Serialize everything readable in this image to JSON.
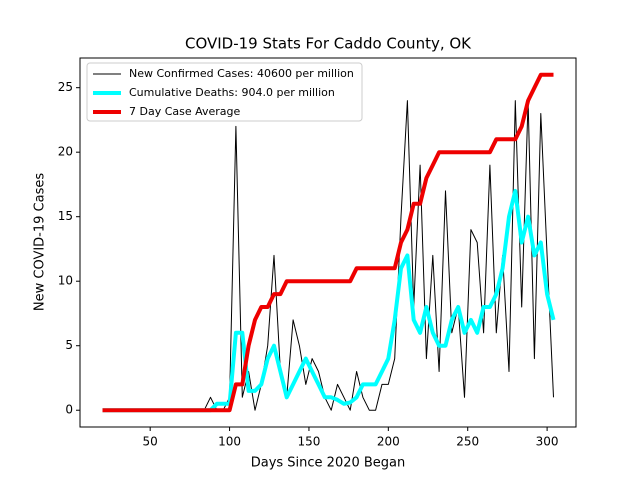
{
  "chart_data": {
    "type": "line",
    "title": "COVID-19 Stats For Caddo County, OK",
    "x_label": "Days Since 2020 Began",
    "y_label": "New COVID-19 Cases",
    "x": [
      20,
      24,
      28,
      32,
      36,
      40,
      44,
      48,
      52,
      56,
      60,
      64,
      68,
      72,
      76,
      80,
      84,
      88,
      92,
      96,
      100,
      104,
      108,
      112,
      116,
      120,
      124,
      128,
      132,
      136,
      140,
      144,
      148,
      152,
      156,
      160,
      164,
      168,
      172,
      176,
      180,
      184,
      188,
      192,
      196,
      200,
      204,
      208,
      212,
      216,
      220,
      224,
      228,
      232,
      236,
      240,
      244,
      248,
      252,
      256,
      260,
      264,
      268,
      272,
      276,
      280,
      284,
      288,
      292,
      296,
      300,
      304
    ],
    "series": [
      {
        "name": "New Confirmed Cases: 40600 per million",
        "color": "#000000",
        "width": 1,
        "values": [
          0,
          0,
          0,
          0,
          0,
          0,
          0,
          0,
          0,
          0,
          0,
          0,
          0,
          0,
          0,
          0,
          0,
          1,
          0,
          0,
          1,
          22,
          1,
          3,
          0,
          2,
          5,
          12,
          3,
          1,
          7,
          5,
          2,
          4,
          3,
          1,
          0,
          2,
          1,
          0,
          3,
          1,
          0,
          0,
          2,
          2,
          4,
          15,
          24,
          8,
          19,
          4,
          12,
          3,
          17,
          6,
          8,
          1,
          14,
          13,
          6,
          19,
          6,
          12,
          3,
          24,
          8,
          24,
          4,
          23,
          12,
          1
        ]
      },
      {
        "name": "Cumulative Deaths: 904.0 per million",
        "color": "#00ffff",
        "width": 4,
        "values": [
          0,
          0,
          0,
          0,
          0,
          0,
          0,
          0,
          0,
          0,
          0,
          0,
          0,
          0,
          0,
          0,
          0,
          0,
          0.5,
          0.5,
          0.5,
          6,
          6,
          1.5,
          1.5,
          2,
          4,
          5,
          3,
          1,
          2,
          3,
          4,
          3,
          2,
          1,
          1,
          0.8,
          0.5,
          0.6,
          1,
          2,
          2,
          2,
          3,
          4,
          7,
          11,
          12,
          7,
          6,
          8,
          6,
          5,
          5,
          7,
          8,
          6,
          7,
          6,
          8,
          8,
          9,
          11,
          15,
          17,
          13,
          15,
          12,
          13,
          9,
          7
        ]
      },
      {
        "name": "7 Day Case Average",
        "color": "#ee0000",
        "width": 4,
        "values": [
          0,
          0,
          0,
          0,
          0,
          0,
          0,
          0,
          0,
          0,
          0,
          0,
          0,
          0,
          0,
          0,
          0,
          0,
          0,
          0,
          0,
          2,
          2,
          5,
          7,
          8,
          8,
          9,
          9,
          10,
          10,
          10,
          10,
          10,
          10,
          10,
          10,
          10,
          10,
          10,
          11,
          11,
          11,
          11,
          11,
          11,
          11,
          13,
          14,
          16,
          16,
          18,
          19,
          20,
          20,
          20,
          20,
          20,
          20,
          20,
          20,
          20,
          21,
          21,
          21,
          21,
          22,
          24,
          25,
          26,
          26,
          26
        ]
      }
    ],
    "xlim": [
      5.8,
      318.2
    ],
    "ylim": [
      -1.3,
      27.3
    ],
    "xticks": [
      50,
      100,
      150,
      200,
      250,
      300
    ],
    "yticks": [
      0,
      5,
      10,
      15,
      20,
      25
    ],
    "legend": "upper left"
  }
}
